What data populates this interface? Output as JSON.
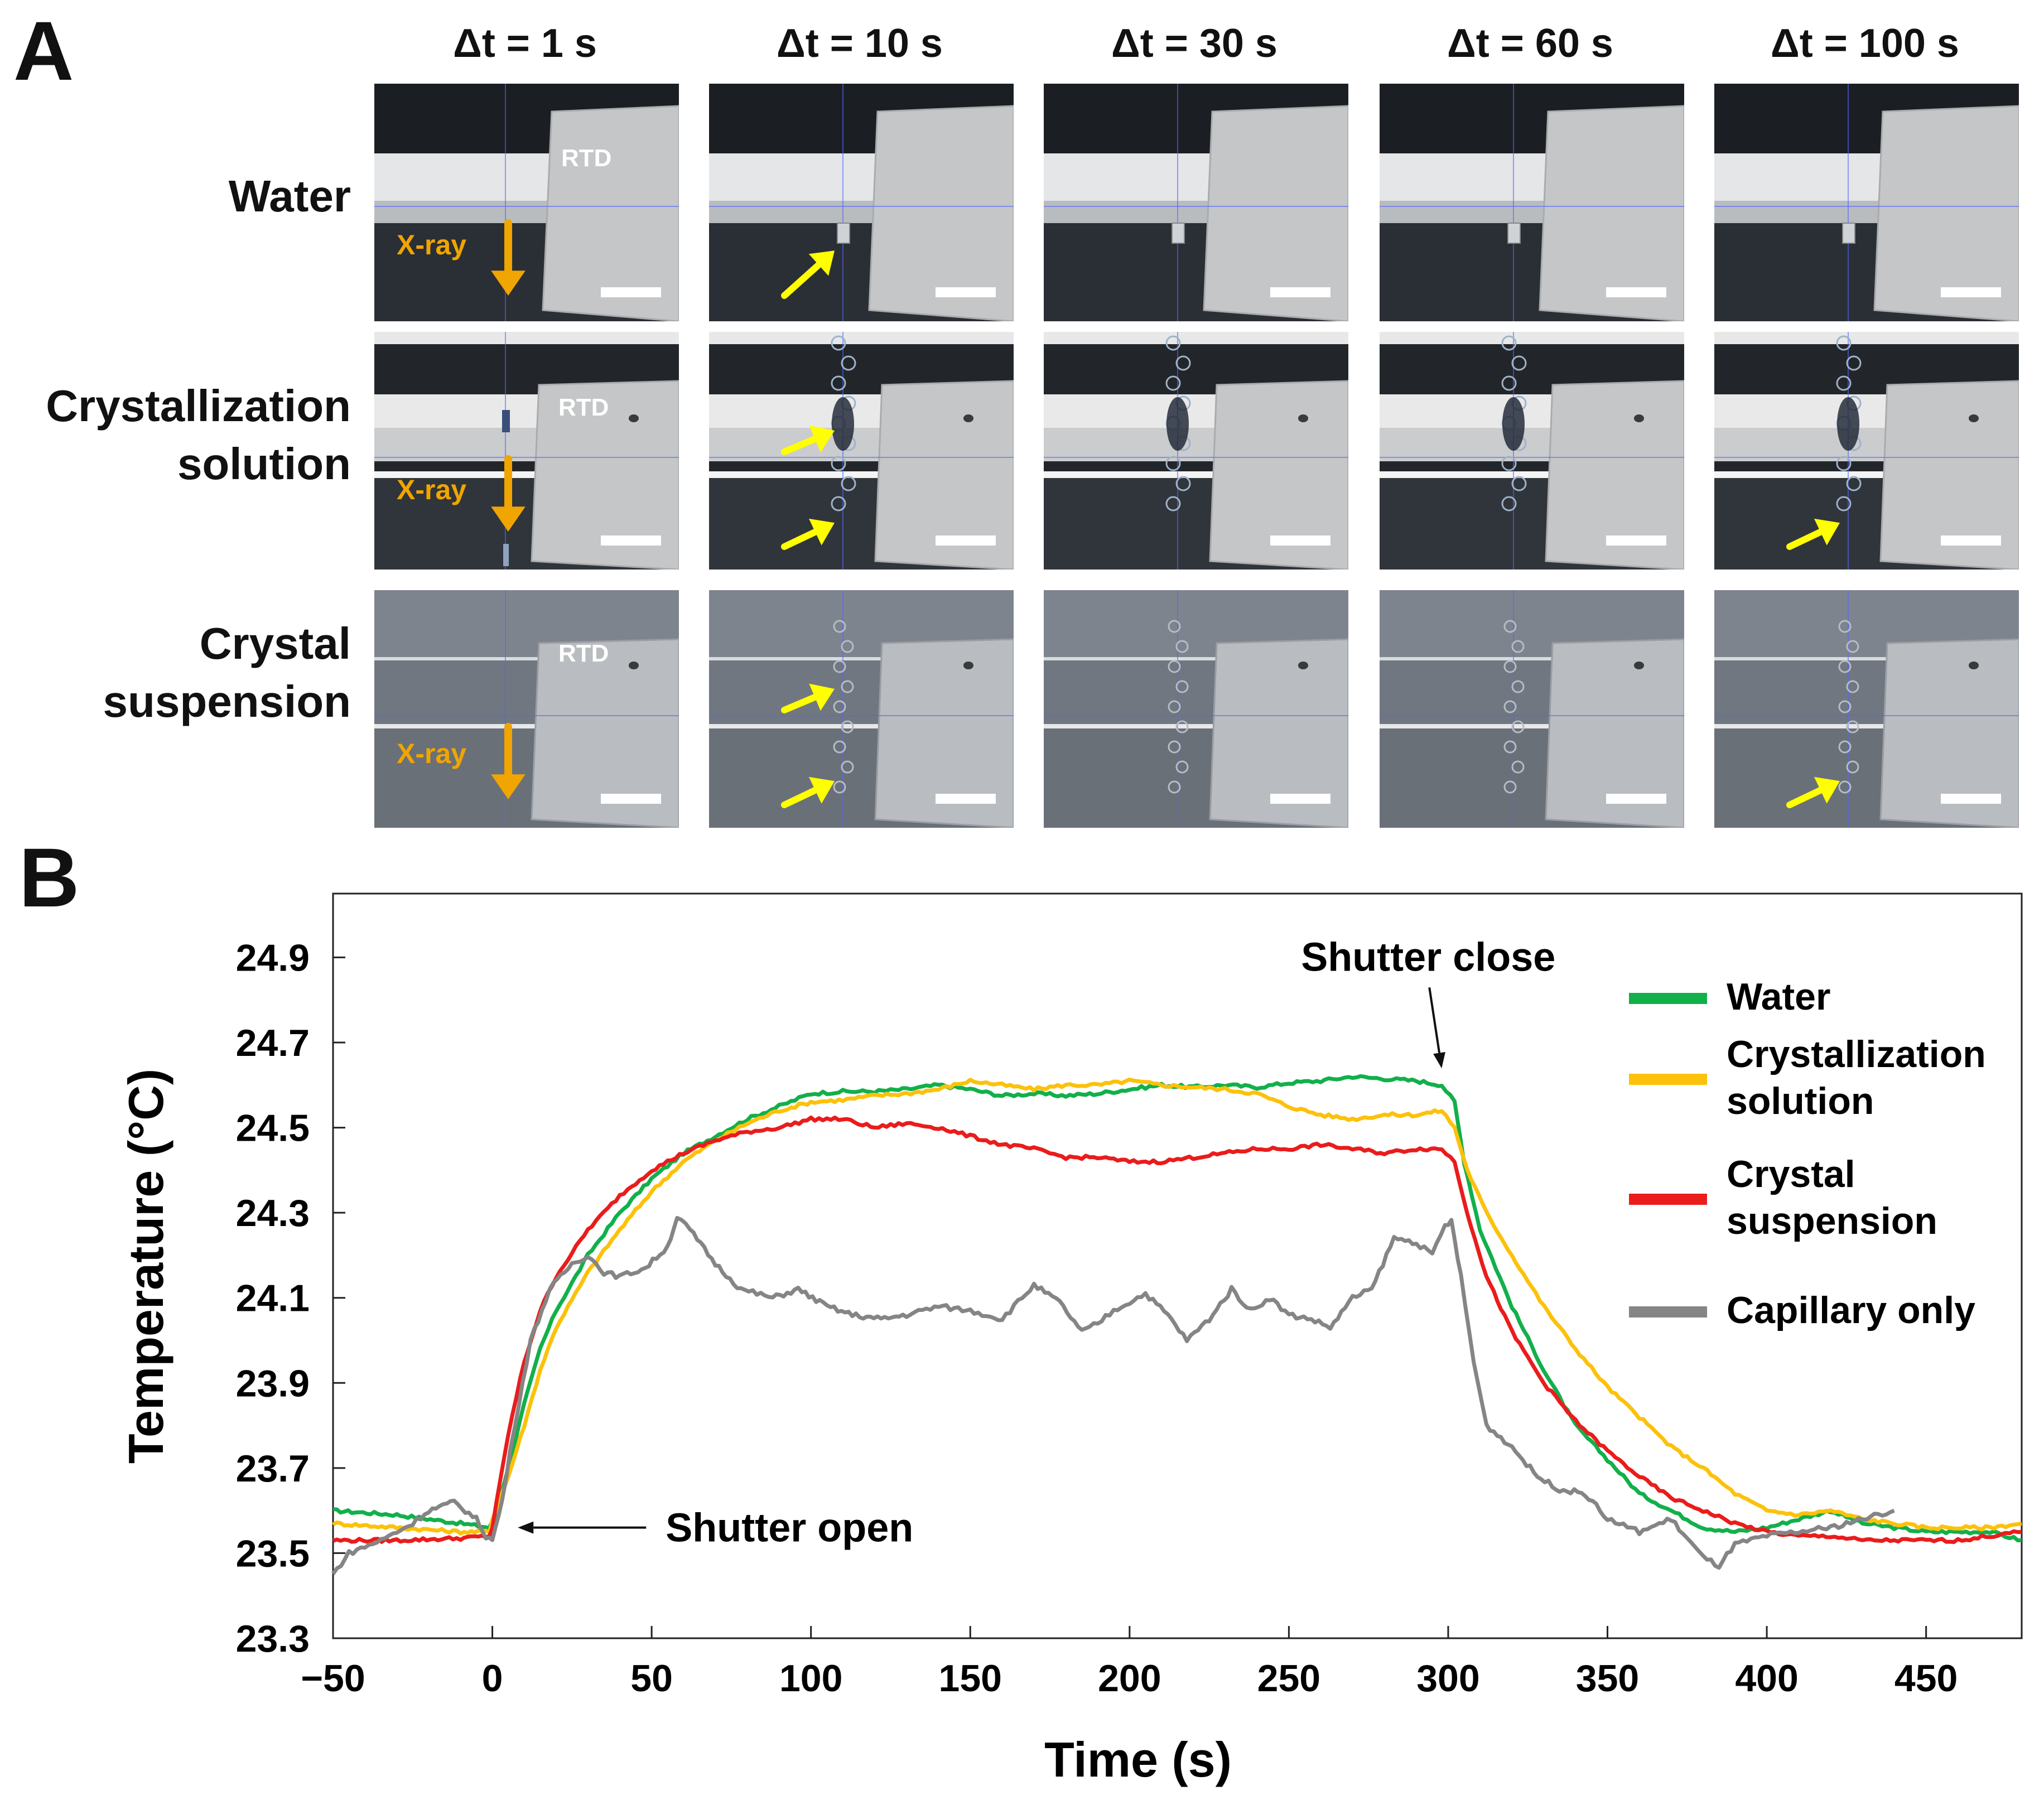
{
  "panels": {
    "a": "A",
    "b": "B"
  },
  "panel_a": {
    "columns": [
      "Δt = 1 s",
      "Δt = 10 s",
      "Δt = 30 s",
      "Δt = 60 s",
      "Δt = 100 s"
    ],
    "rows": [
      {
        "name": "water",
        "lines": [
          "Water"
        ]
      },
      {
        "name": "crystallization-solution",
        "lines": [
          "Crystallization",
          "solution"
        ]
      },
      {
        "name": "crystal-suspension",
        "lines": [
          "Crystal",
          "suspension"
        ]
      }
    ],
    "rtd_label": "RTD",
    "xray_label": "X-ray",
    "colors": {
      "xray_arrow": "#f0a500",
      "highlight_arrow": "#ffff00",
      "scale_bar": "#ffffff"
    },
    "yellow_arrows": [
      {
        "row": 0,
        "col": 1,
        "count": 1
      },
      {
        "row": 1,
        "col": 1,
        "count": 2
      },
      {
        "row": 1,
        "col": 4,
        "count": 1
      },
      {
        "row": 2,
        "col": 1,
        "count": 2
      },
      {
        "row": 2,
        "col": 4,
        "count": 1
      }
    ]
  },
  "chart_data": {
    "type": "line",
    "xlabel": "Time (s)",
    "ylabel": "Temperature (°C)",
    "xlim": [
      -50,
      480
    ],
    "ylim": [
      23.3,
      25.05
    ],
    "x_ticks": [
      -50,
      0,
      50,
      100,
      150,
      200,
      250,
      300,
      350,
      400,
      450
    ],
    "x_tick_labels": [
      "−50",
      "0",
      "50",
      "100",
      "150",
      "200",
      "250",
      "300",
      "350",
      "400",
      "450"
    ],
    "y_ticks": [
      23.3,
      23.5,
      23.7,
      23.9,
      24.1,
      24.3,
      24.5,
      24.7,
      24.9
    ],
    "y_tick_labels": [
      "23.3",
      "23.5",
      "23.7",
      "23.9",
      "24.1",
      "24.3",
      "24.5",
      "24.7",
      "24.9"
    ],
    "grid": false,
    "legend_position": "right",
    "annotations": [
      {
        "text": "Shutter open",
        "x": 8,
        "y": 23.56
      },
      {
        "text": "Shutter close",
        "x": 299,
        "y": 24.6
      }
    ],
    "series": [
      {
        "name": "Water",
        "legend_lines": [
          "Water"
        ],
        "color": "#12b04a",
        "points": [
          [
            -50,
            23.6
          ],
          [
            -30,
            23.59
          ],
          [
            -10,
            23.57
          ],
          [
            -1,
            23.56
          ],
          [
            0,
            23.57
          ],
          [
            5,
            23.7
          ],
          [
            10,
            23.85
          ],
          [
            15,
            23.98
          ],
          [
            20,
            24.07
          ],
          [
            30,
            24.2
          ],
          [
            40,
            24.3
          ],
          [
            50,
            24.38
          ],
          [
            60,
            24.44
          ],
          [
            70,
            24.48
          ],
          [
            80,
            24.52
          ],
          [
            90,
            24.55
          ],
          [
            100,
            24.58
          ],
          [
            110,
            24.585
          ],
          [
            120,
            24.585
          ],
          [
            130,
            24.59
          ],
          [
            140,
            24.6
          ],
          [
            150,
            24.59
          ],
          [
            160,
            24.575
          ],
          [
            170,
            24.58
          ],
          [
            180,
            24.575
          ],
          [
            190,
            24.58
          ],
          [
            200,
            24.59
          ],
          [
            210,
            24.6
          ],
          [
            220,
            24.595
          ],
          [
            230,
            24.6
          ],
          [
            240,
            24.595
          ],
          [
            250,
            24.605
          ],
          [
            260,
            24.61
          ],
          [
            270,
            24.62
          ],
          [
            280,
            24.615
          ],
          [
            290,
            24.61
          ],
          [
            298,
            24.6
          ],
          [
            302,
            24.56
          ],
          [
            305,
            24.42
          ],
          [
            310,
            24.26
          ],
          [
            320,
            24.08
          ],
          [
            330,
            23.93
          ],
          [
            340,
            23.8
          ],
          [
            350,
            23.72
          ],
          [
            360,
            23.64
          ],
          [
            370,
            23.6
          ],
          [
            380,
            23.56
          ],
          [
            390,
            23.55
          ],
          [
            400,
            23.56
          ],
          [
            410,
            23.58
          ],
          [
            420,
            23.6
          ],
          [
            430,
            23.57
          ],
          [
            440,
            23.56
          ],
          [
            450,
            23.55
          ],
          [
            460,
            23.55
          ],
          [
            470,
            23.55
          ],
          [
            480,
            23.53
          ]
        ]
      },
      {
        "name": "Crystallization solution",
        "legend_lines": [
          "Crystallization",
          "solution"
        ],
        "color": "#fcc10b",
        "points": [
          [
            -50,
            23.57
          ],
          [
            -30,
            23.56
          ],
          [
            -10,
            23.55
          ],
          [
            -1,
            23.55
          ],
          [
            0,
            23.58
          ],
          [
            5,
            23.68
          ],
          [
            10,
            23.8
          ],
          [
            15,
            23.93
          ],
          [
            20,
            24.03
          ],
          [
            30,
            24.16
          ],
          [
            40,
            24.26
          ],
          [
            50,
            24.35
          ],
          [
            60,
            24.42
          ],
          [
            70,
            24.47
          ],
          [
            80,
            24.51
          ],
          [
            90,
            24.54
          ],
          [
            100,
            24.56
          ],
          [
            110,
            24.565
          ],
          [
            120,
            24.575
          ],
          [
            130,
            24.58
          ],
          [
            140,
            24.59
          ],
          [
            150,
            24.61
          ],
          [
            160,
            24.6
          ],
          [
            170,
            24.59
          ],
          [
            180,
            24.6
          ],
          [
            190,
            24.6
          ],
          [
            200,
            24.61
          ],
          [
            210,
            24.6
          ],
          [
            220,
            24.595
          ],
          [
            230,
            24.59
          ],
          [
            240,
            24.58
          ],
          [
            250,
            24.55
          ],
          [
            260,
            24.53
          ],
          [
            270,
            24.52
          ],
          [
            280,
            24.53
          ],
          [
            290,
            24.53
          ],
          [
            298,
            24.54
          ],
          [
            302,
            24.5
          ],
          [
            306,
            24.4
          ],
          [
            312,
            24.3
          ],
          [
            320,
            24.2
          ],
          [
            330,
            24.08
          ],
          [
            340,
            23.98
          ],
          [
            350,
            23.89
          ],
          [
            360,
            23.82
          ],
          [
            370,
            23.75
          ],
          [
            380,
            23.7
          ],
          [
            390,
            23.64
          ],
          [
            400,
            23.6
          ],
          [
            410,
            23.59
          ],
          [
            420,
            23.6
          ],
          [
            430,
            23.58
          ],
          [
            440,
            23.57
          ],
          [
            450,
            23.56
          ],
          [
            460,
            23.56
          ],
          [
            470,
            23.56
          ],
          [
            480,
            23.57
          ]
        ]
      },
      {
        "name": "Crystal suspension",
        "legend_lines": [
          "Crystal",
          "suspension"
        ],
        "color": "#ea1c1c",
        "points": [
          [
            -50,
            23.53
          ],
          [
            -30,
            23.53
          ],
          [
            -10,
            23.535
          ],
          [
            -1,
            23.54
          ],
          [
            0,
            23.56
          ],
          [
            5,
            23.78
          ],
          [
            10,
            23.95
          ],
          [
            15,
            24.07
          ],
          [
            20,
            24.15
          ],
          [
            30,
            24.26
          ],
          [
            40,
            24.34
          ],
          [
            50,
            24.4
          ],
          [
            60,
            24.44
          ],
          [
            70,
            24.47
          ],
          [
            80,
            24.49
          ],
          [
            90,
            24.5
          ],
          [
            100,
            24.52
          ],
          [
            110,
            24.52
          ],
          [
            120,
            24.5
          ],
          [
            130,
            24.51
          ],
          [
            140,
            24.5
          ],
          [
            150,
            24.48
          ],
          [
            160,
            24.46
          ],
          [
            170,
            24.45
          ],
          [
            180,
            24.43
          ],
          [
            190,
            24.43
          ],
          [
            200,
            24.42
          ],
          [
            210,
            24.42
          ],
          [
            220,
            24.43
          ],
          [
            230,
            24.44
          ],
          [
            240,
            24.45
          ],
          [
            250,
            24.45
          ],
          [
            260,
            24.46
          ],
          [
            270,
            24.45
          ],
          [
            280,
            24.44
          ],
          [
            290,
            24.45
          ],
          [
            298,
            24.45
          ],
          [
            302,
            24.42
          ],
          [
            306,
            24.3
          ],
          [
            312,
            24.15
          ],
          [
            320,
            24.02
          ],
          [
            330,
            23.9
          ],
          [
            340,
            23.81
          ],
          [
            350,
            23.74
          ],
          [
            360,
            23.68
          ],
          [
            370,
            23.63
          ],
          [
            380,
            23.6
          ],
          [
            390,
            23.57
          ],
          [
            400,
            23.55
          ],
          [
            410,
            23.54
          ],
          [
            420,
            23.54
          ],
          [
            430,
            23.53
          ],
          [
            440,
            23.53
          ],
          [
            450,
            23.53
          ],
          [
            460,
            23.53
          ],
          [
            470,
            23.54
          ],
          [
            480,
            23.55
          ]
        ]
      },
      {
        "name": "Capillary only",
        "legend_lines": [
          "Capillary only"
        ],
        "color": "#858585",
        "points": [
          [
            -50,
            23.45
          ],
          [
            -45,
            23.5
          ],
          [
            -35,
            23.53
          ],
          [
            -25,
            23.57
          ],
          [
            -20,
            23.6
          ],
          [
            -12,
            23.62
          ],
          [
            -5,
            23.58
          ],
          [
            -2,
            23.54
          ],
          [
            0,
            23.53
          ],
          [
            3,
            23.62
          ],
          [
            7,
            23.8
          ],
          [
            12,
            24.0
          ],
          [
            18,
            24.12
          ],
          [
            25,
            24.18
          ],
          [
            30,
            24.2
          ],
          [
            35,
            24.16
          ],
          [
            40,
            24.15
          ],
          [
            48,
            24.17
          ],
          [
            55,
            24.22
          ],
          [
            58,
            24.29
          ],
          [
            62,
            24.26
          ],
          [
            70,
            24.18
          ],
          [
            78,
            24.12
          ],
          [
            88,
            24.1
          ],
          [
            96,
            24.12
          ],
          [
            105,
            24.08
          ],
          [
            113,
            24.06
          ],
          [
            122,
            24.05
          ],
          [
            130,
            24.06
          ],
          [
            140,
            24.08
          ],
          [
            150,
            24.07
          ],
          [
            160,
            24.05
          ],
          [
            170,
            24.13
          ],
          [
            178,
            24.09
          ],
          [
            185,
            24.02
          ],
          [
            190,
            24.04
          ],
          [
            195,
            24.07
          ],
          [
            205,
            24.11
          ],
          [
            212,
            24.06
          ],
          [
            218,
            24.0
          ],
          [
            225,
            24.05
          ],
          [
            232,
            24.12
          ],
          [
            238,
            24.07
          ],
          [
            244,
            24.1
          ],
          [
            250,
            24.06
          ],
          [
            257,
            24.05
          ],
          [
            263,
            24.03
          ],
          [
            270,
            24.1
          ],
          [
            276,
            24.12
          ],
          [
            283,
            24.24
          ],
          [
            290,
            24.23
          ],
          [
            295,
            24.2
          ],
          [
            299,
            24.27
          ],
          [
            301,
            24.28
          ],
          [
            304,
            24.15
          ],
          [
            308,
            23.95
          ],
          [
            312,
            23.8
          ],
          [
            320,
            23.75
          ],
          [
            328,
            23.68
          ],
          [
            335,
            23.65
          ],
          [
            343,
            23.64
          ],
          [
            350,
            23.58
          ],
          [
            360,
            23.55
          ],
          [
            370,
            23.58
          ],
          [
            380,
            23.49
          ],
          [
            385,
            23.47
          ],
          [
            390,
            23.52
          ],
          [
            400,
            23.54
          ],
          [
            410,
            23.55
          ],
          [
            420,
            23.56
          ],
          [
            430,
            23.58
          ],
          [
            440,
            23.6
          ]
        ]
      }
    ]
  }
}
